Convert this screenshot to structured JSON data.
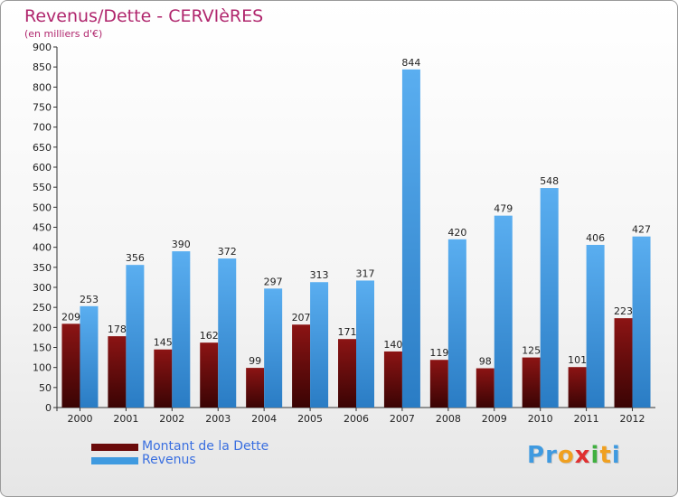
{
  "chart_data": {
    "type": "bar",
    "title": "Revenus/Dette - CERVIèRES",
    "subtitle": "(en milliers d'€)",
    "categories": [
      "2000",
      "2001",
      "2002",
      "2003",
      "2004",
      "2005",
      "2006",
      "2007",
      "2008",
      "2009",
      "2010",
      "2011",
      "2012"
    ],
    "series": [
      {
        "name": "Montant de la Dette",
        "color": "#7a0c0c",
        "values": [
          209,
          178,
          145,
          162,
          99,
          207,
          171,
          140,
          119,
          98,
          125,
          101,
          223
        ]
      },
      {
        "name": "Revenus",
        "color": "#3f9ae0",
        "values": [
          253,
          356,
          390,
          372,
          297,
          313,
          317,
          844,
          420,
          479,
          548,
          406,
          427
        ]
      }
    ],
    "ylim": [
      0,
      900
    ],
    "yticks": [
      0,
      50,
      100,
      150,
      200,
      250,
      300,
      350,
      400,
      450,
      500,
      550,
      600,
      650,
      700,
      750,
      800,
      850,
      900
    ],
    "grid": false,
    "legend": "bottom-left"
  },
  "logo": {
    "letters": [
      {
        "ch": "P",
        "color": "#3f9ae0"
      },
      {
        "ch": "r",
        "color": "#3f9ae0"
      },
      {
        "ch": "o",
        "color": "#f0a020"
      },
      {
        "ch": "x",
        "color": "#e03030"
      },
      {
        "ch": "i",
        "color": "#40b040"
      },
      {
        "ch": "t",
        "color": "#f0a020"
      },
      {
        "ch": "i",
        "color": "#3f9ae0"
      }
    ]
  }
}
